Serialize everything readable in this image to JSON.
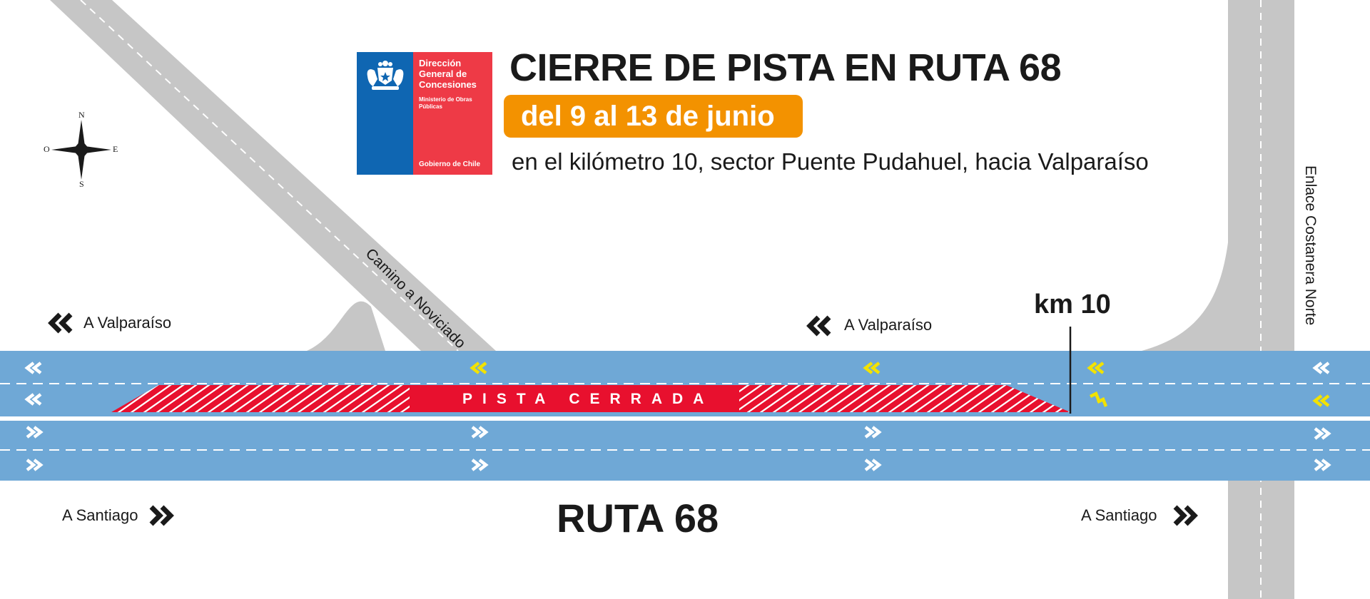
{
  "header": {
    "title": "CIERRE DE PISTA EN RUTA 68",
    "dates": "del 9 al 13 de junio",
    "subtitle": "en el kilómetro 10, sector Puente Pudahuel, hacia Valparaíso"
  },
  "logo": {
    "line1": "Dirección General de Concesiones",
    "line2": "Ministerio de Obras Públicas",
    "line3": "Gobierno de Chile"
  },
  "compass": {
    "north": "N",
    "south": "S",
    "east": "E",
    "west": "O"
  },
  "labels": {
    "to_valparaiso_left": "A Valparaíso",
    "to_valparaiso_right": "A Valparaíso",
    "to_santiago_left": "A Santiago",
    "to_santiago_right": "A Santiago",
    "camino": "Camino a Noviciado",
    "enlace": "Enlace Costanera Norte",
    "km": "km 10",
    "closed_lane": "PISTA CERRADA",
    "route": "RUTA 68"
  },
  "colors": {
    "road_blue": "#6fa8d6",
    "road_gray": "#c6c6c6",
    "closure_red": "#e8102e",
    "warning_yellow": "#f2e200",
    "date_orange": "#f39200",
    "logo_blue": "#0f66b2",
    "logo_red": "#ee3a46"
  },
  "icons": {
    "direction_west": "double-chevron-left-icon",
    "direction_east": "double-chevron-right-icon",
    "lane_merge": "merge-arrow-icon",
    "compass": "compass-rose-icon",
    "crest": "chile-crest-icon"
  }
}
